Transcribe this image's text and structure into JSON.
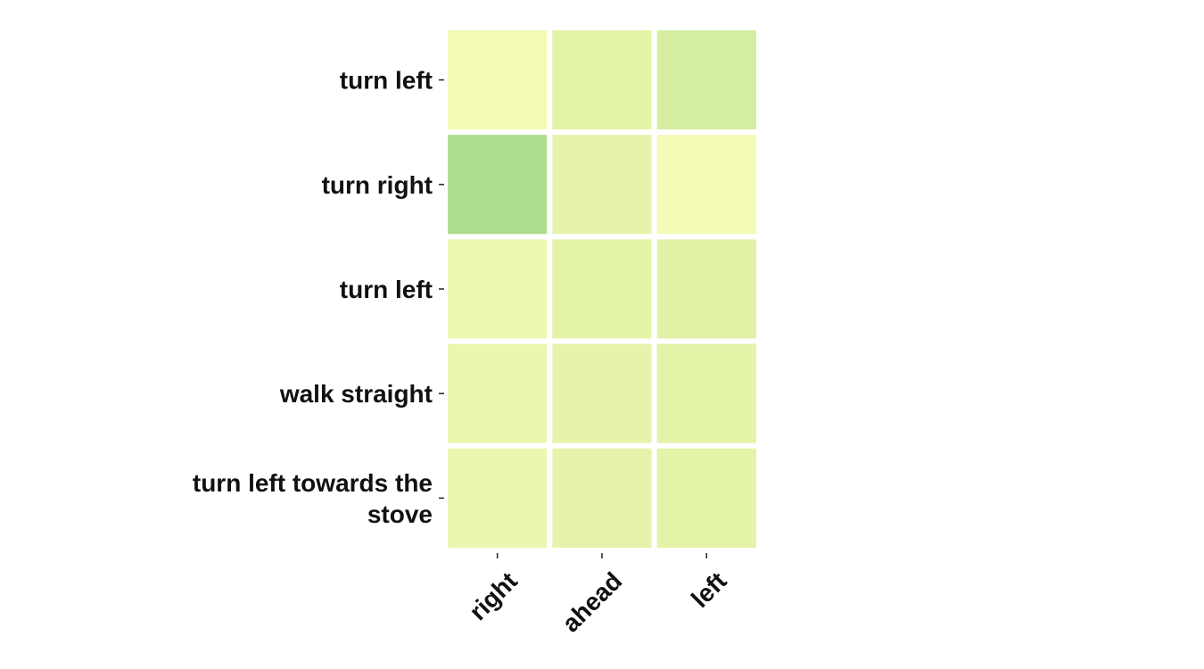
{
  "chart_data": {
    "type": "heatmap",
    "title": "",
    "xlabel": "",
    "ylabel": "",
    "x_categories": [
      "right",
      "ahead",
      "left"
    ],
    "y_categories": [
      [
        "turn left"
      ],
      [
        "turn right"
      ],
      [
        "turn left"
      ],
      [
        "walk straight"
      ],
      [
        "turn left towards the",
        "stove"
      ]
    ],
    "values": [
      [
        0.05,
        0.22,
        0.32
      ],
      [
        0.55,
        0.2,
        0.02
      ],
      [
        0.12,
        0.22,
        0.24
      ],
      [
        0.13,
        0.2,
        0.22
      ],
      [
        0.13,
        0.2,
        0.22
      ]
    ],
    "colormap": {
      "name": "YlGn",
      "low": "#f7fcb9",
      "mid": "#e0f2a6",
      "high": "#addd8e"
    },
    "colorbar": false,
    "grid": false
  }
}
